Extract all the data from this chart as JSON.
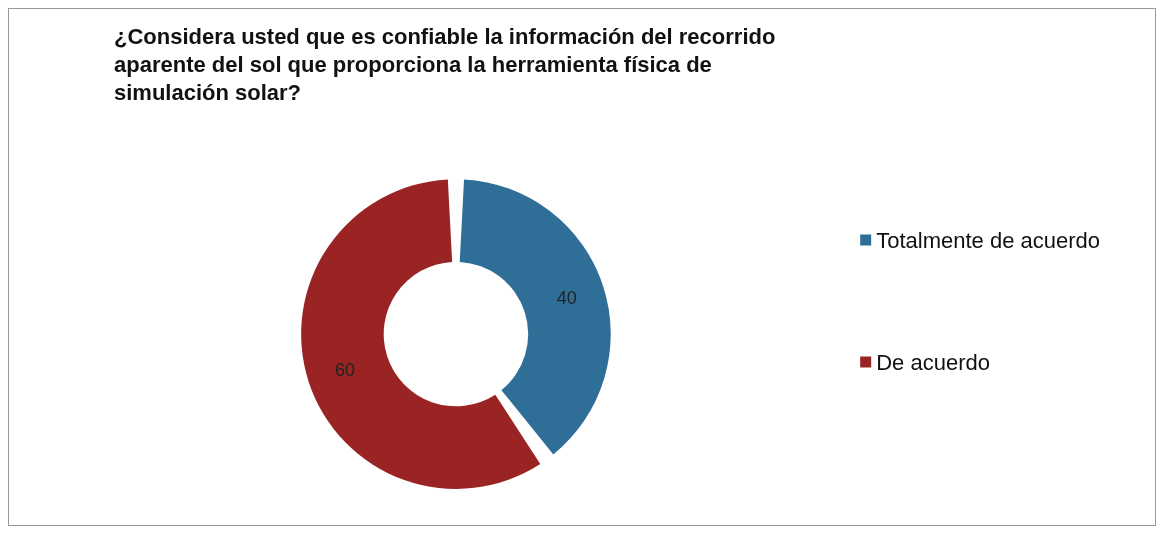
{
  "chart_data": {
    "type": "donut",
    "title": "¿Considera usted que es confiable la información del recorrido\naparente del sol que proporciona la herramienta física de\nsimulación solar?",
    "categories": [
      "Totalmente de acuerdo",
      "De acuerdo"
    ],
    "values": [
      40,
      60
    ],
    "colors": [
      "#2f6f97",
      "#9a2424"
    ],
    "data_labels": true,
    "legend": "right"
  }
}
